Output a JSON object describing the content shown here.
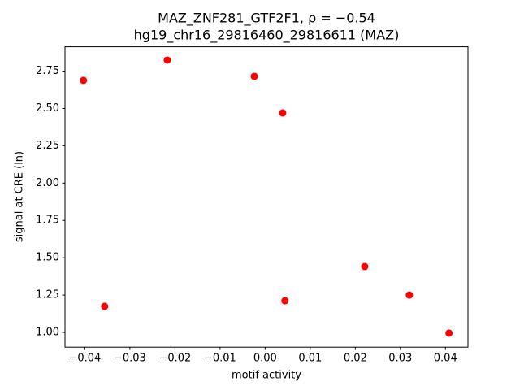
{
  "chart_data": {
    "type": "scatter",
    "title": "MAZ_ZNF281_GTF2F1, ρ = −0.54",
    "subtitle": "hg19_chr16_29816460_29816611 (MAZ)",
    "x_label": "motif activity",
    "y_label": "signal at CRE (ln)",
    "color": "#ff0000",
    "series": [
      {
        "x": [
          -0.0403,
          -0.0356,
          -0.0217,
          -0.0024,
          0.0039,
          0.0044,
          0.0221,
          0.032,
          0.0408
        ],
        "values": [
          2.688,
          1.174,
          2.824,
          2.715,
          2.47,
          1.212,
          1.441,
          1.25,
          0.995
        ]
      }
    ],
    "xlim": [
      -0.0444,
      0.045
    ],
    "ylim": [
      0.901,
      2.913
    ],
    "xticks": [
      {
        "value": -0.04,
        "label": "−0.04"
      },
      {
        "value": -0.03,
        "label": "−0.03"
      },
      {
        "value": -0.02,
        "label": "−0.02"
      },
      {
        "value": -0.01,
        "label": "−0.01"
      },
      {
        "value": 0,
        "label": "0.00"
      },
      0.01,
      0.02,
      0.03,
      0.04
    ],
    "yticks": [
      {
        "value": 1,
        "label": "1.00"
      },
      1.25,
      {
        "value": 1.5,
        "label": "1.50"
      },
      1.75,
      {
        "value": 2,
        "label": "2.00"
      },
      2.25,
      {
        "value": 2.5,
        "label": "2.50"
      },
      2.75
    ],
    "grid": false
  }
}
